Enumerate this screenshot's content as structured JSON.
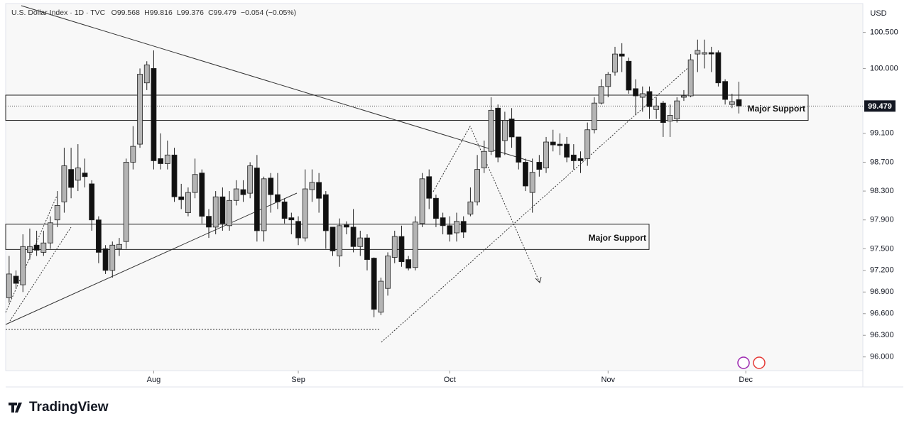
{
  "chart_data": {
    "type": "candlestick",
    "title": "U.S. Dollar Index · 1D · TVC",
    "ohlc_legend": [
      "O99.568",
      "H99.816",
      "L99.376",
      "C99.479"
    ],
    "change": "−0.054 (−0.05%)",
    "currency": "USD",
    "brand": "TradingView",
    "up_color": "#b4b4b4",
    "down_color": "#111111",
    "ylim": [
      95.81,
      100.9
    ],
    "yticks": [
      {
        "value": 96.0,
        "label": "96.000"
      },
      {
        "value": 96.3,
        "label": "96.300"
      },
      {
        "value": 96.6,
        "label": "96.600"
      },
      {
        "value": 96.9,
        "label": "96.900"
      },
      {
        "value": 97.2,
        "label": "97.200"
      },
      {
        "value": 97.5,
        "label": "97.500"
      },
      {
        "value": 97.9,
        "label": "97.900"
      },
      {
        "value": 98.3,
        "label": "98.300"
      },
      {
        "value": 98.7,
        "label": "98.700"
      },
      {
        "value": 99.1,
        "label": "99.100"
      },
      {
        "value": 100.0,
        "label": "100.000"
      },
      {
        "value": 100.5,
        "label": "100.500"
      }
    ],
    "xlim": [
      -0.5,
      124
    ],
    "xticks": [
      {
        "value": 21,
        "label": "Aug"
      },
      {
        "value": 42,
        "label": "Sep"
      },
      {
        "value": 64,
        "label": "Oct"
      },
      {
        "value": 87,
        "label": "Nov"
      },
      {
        "value": 107,
        "label": "Dec"
      }
    ],
    "last_price": {
      "value": 99.479,
      "label": "99.479"
    },
    "zones": [
      {
        "label": "Major Support",
        "top": 99.63,
        "bottom": 99.28
      },
      {
        "label": "Major Support",
        "top": 97.84,
        "bottom": 97.49
      }
    ],
    "ohlc": [
      [
        96.82,
        97.4,
        96.75,
        97.15
      ],
      [
        97.12,
        97.2,
        96.95,
        97.02
      ],
      [
        97.0,
        97.7,
        96.9,
        97.53
      ],
      [
        97.45,
        97.78,
        97.35,
        97.53
      ],
      [
        97.55,
        97.75,
        97.4,
        97.48
      ],
      [
        97.45,
        97.75,
        97.4,
        97.58
      ],
      [
        97.58,
        97.95,
        97.5,
        97.86
      ],
      [
        97.9,
        98.3,
        97.8,
        98.1
      ],
      [
        98.15,
        98.9,
        98.0,
        98.65
      ],
      [
        98.6,
        98.9,
        98.2,
        98.35
      ],
      [
        98.45,
        98.95,
        98.3,
        98.62
      ],
      [
        98.55,
        98.75,
        98.35,
        98.5
      ],
      [
        98.4,
        98.45,
        97.75,
        97.9
      ],
      [
        97.9,
        97.95,
        97.3,
        97.45
      ],
      [
        97.5,
        97.55,
        97.15,
        97.2
      ],
      [
        97.2,
        97.6,
        97.1,
        97.55
      ],
      [
        97.5,
        97.65,
        97.4,
        97.56
      ],
      [
        97.6,
        98.75,
        97.5,
        98.7
      ],
      [
        98.7,
        99.2,
        98.6,
        98.92
      ],
      [
        98.95,
        100.0,
        98.9,
        99.92
      ],
      [
        99.8,
        100.1,
        99.7,
        100.05
      ],
      [
        100.0,
        100.25,
        98.6,
        98.72
      ],
      [
        98.75,
        99.1,
        98.6,
        98.68
      ],
      [
        98.68,
        99.0,
        98.6,
        98.8
      ],
      [
        98.8,
        98.9,
        98.15,
        98.22
      ],
      [
        98.22,
        98.4,
        98.05,
        98.18
      ],
      [
        98.0,
        98.35,
        97.95,
        98.28
      ],
      [
        98.28,
        98.75,
        98.2,
        98.53
      ],
      [
        98.55,
        98.6,
        97.85,
        97.95
      ],
      [
        97.95,
        98.05,
        97.65,
        97.8
      ],
      [
        97.8,
        98.3,
        97.7,
        98.22
      ],
      [
        98.22,
        98.35,
        97.75,
        97.85
      ],
      [
        97.82,
        98.3,
        97.75,
        98.17
      ],
      [
        98.17,
        98.45,
        98.1,
        98.33
      ],
      [
        98.32,
        98.45,
        98.15,
        98.25
      ],
      [
        98.27,
        98.7,
        98.2,
        98.65
      ],
      [
        98.62,
        98.8,
        97.6,
        97.75
      ],
      [
        97.75,
        98.5,
        97.6,
        98.47
      ],
      [
        98.48,
        98.55,
        98.0,
        98.25
      ],
      [
        98.25,
        98.55,
        98.05,
        98.15
      ],
      [
        98.15,
        98.2,
        97.85,
        97.92
      ],
      [
        97.93,
        98.0,
        97.7,
        97.9
      ],
      [
        97.88,
        97.95,
        97.55,
        97.65
      ],
      [
        97.65,
        98.6,
        97.6,
        98.33
      ],
      [
        98.32,
        98.6,
        98.15,
        98.42
      ],
      [
        98.42,
        98.55,
        98.0,
        98.2
      ],
      [
        98.25,
        98.3,
        97.5,
        97.75
      ],
      [
        97.8,
        97.8,
        97.4,
        97.47
      ],
      [
        97.4,
        97.92,
        97.25,
        97.82
      ],
      [
        97.83,
        97.88,
        97.7,
        97.8
      ],
      [
        97.8,
        98.05,
        97.45,
        97.53
      ],
      [
        97.53,
        97.75,
        97.4,
        97.65
      ],
      [
        97.65,
        97.7,
        97.2,
        97.35
      ],
      [
        97.37,
        97.38,
        96.55,
        96.66
      ],
      [
        96.62,
        97.1,
        96.58,
        97.05
      ],
      [
        96.95,
        97.45,
        96.85,
        97.4
      ],
      [
        97.38,
        97.75,
        97.3,
        97.67
      ],
      [
        97.67,
        97.82,
        97.25,
        97.32
      ],
      [
        97.35,
        97.4,
        97.2,
        97.23
      ],
      [
        97.24,
        97.95,
        97.2,
        97.87
      ],
      [
        97.85,
        98.55,
        97.8,
        98.47
      ],
      [
        98.5,
        98.6,
        98.05,
        98.2
      ],
      [
        98.2,
        98.25,
        97.8,
        97.92
      ],
      [
        97.93,
        98.0,
        97.7,
        97.82
      ],
      [
        97.82,
        97.95,
        97.6,
        97.7
      ],
      [
        97.72,
        98.0,
        97.6,
        97.88
      ],
      [
        97.88,
        97.95,
        97.65,
        97.73
      ],
      [
        97.98,
        98.35,
        97.95,
        98.15
      ],
      [
        98.15,
        98.8,
        98.1,
        98.6
      ],
      [
        98.62,
        99.0,
        98.55,
        98.85
      ],
      [
        98.85,
        99.6,
        98.8,
        99.42
      ],
      [
        99.45,
        99.5,
        98.7,
        98.77
      ],
      [
        99.0,
        99.4,
        98.8,
        99.28
      ],
      [
        99.3,
        99.45,
        98.9,
        99.05
      ],
      [
        99.05,
        99.05,
        98.6,
        98.7
      ],
      [
        98.7,
        98.75,
        98.3,
        98.37
      ],
      [
        98.28,
        98.75,
        98.0,
        98.56
      ],
      [
        98.7,
        98.8,
        98.5,
        98.6
      ],
      [
        98.62,
        99.05,
        98.55,
        98.98
      ],
      [
        98.98,
        99.15,
        98.85,
        98.94
      ],
      [
        98.95,
        99.1,
        98.8,
        98.93
      ],
      [
        98.95,
        99.05,
        98.7,
        98.77
      ],
      [
        98.8,
        98.95,
        98.6,
        98.72
      ],
      [
        98.75,
        98.85,
        98.55,
        98.72
      ],
      [
        98.75,
        99.25,
        98.65,
        99.15
      ],
      [
        99.15,
        99.6,
        99.1,
        99.52
      ],
      [
        99.52,
        99.85,
        99.5,
        99.75
      ],
      [
        99.75,
        99.95,
        99.6,
        99.92
      ],
      [
        99.95,
        100.3,
        99.9,
        100.2
      ],
      [
        100.2,
        100.35,
        99.95,
        100.17
      ],
      [
        100.1,
        100.15,
        99.65,
        99.7
      ],
      [
        99.72,
        99.85,
        99.35,
        99.62
      ],
      [
        99.6,
        99.75,
        99.4,
        99.65
      ],
      [
        99.68,
        99.75,
        99.3,
        99.47
      ],
      [
        99.43,
        99.6,
        99.3,
        99.48
      ],
      [
        99.52,
        99.55,
        99.05,
        99.25
      ],
      [
        99.27,
        99.5,
        99.05,
        99.35
      ],
      [
        99.3,
        99.6,
        99.25,
        99.55
      ],
      [
        99.6,
        99.7,
        99.55,
        99.62
      ],
      [
        99.62,
        100.2,
        99.6,
        100.12
      ],
      [
        100.2,
        100.4,
        99.95,
        100.25
      ],
      [
        100.2,
        100.4,
        100.0,
        100.22
      ],
      [
        100.22,
        100.3,
        99.95,
        100.2
      ],
      [
        100.22,
        100.25,
        99.75,
        99.8
      ],
      [
        99.82,
        99.85,
        99.5,
        99.57
      ],
      [
        99.5,
        99.65,
        99.45,
        99.54
      ],
      [
        99.568,
        99.816,
        99.376,
        99.479
      ]
    ]
  }
}
